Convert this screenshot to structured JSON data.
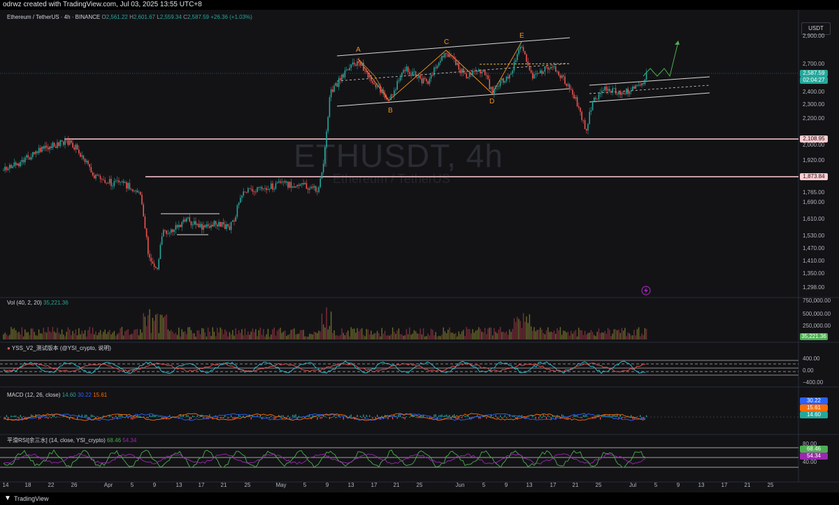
{
  "header": {
    "credit": "odrwz created with TradingView.com, Jul 03, 2025 13:55 UTC+8"
  },
  "symbol": {
    "title": "Ethereum / TetherUS · 4h · BINANCE",
    "o_label": "O",
    "o": "2,561.22",
    "h_label": "H",
    "h": "2,601.67",
    "l_label": "L",
    "l": "2,559.34",
    "c_label": "C",
    "c": "2,587.59",
    "change": "+26.36 (+1.03%)"
  },
  "watermark": {
    "ticker": "ETHUSDT, 4h",
    "name": "Ethereum / TetherUS"
  },
  "currency": "USDT",
  "price_axis": [
    "2,900.00",
    "2,700.00",
    "2,500.00",
    "2,400.00",
    "2,300.00",
    "2,200.00",
    "2,000.00",
    "1,920.00",
    "1,840.00",
    "1,765.00",
    "1,690.00",
    "1,610.00",
    "1,530.00",
    "1,470.00",
    "1,410.00",
    "1,350.00",
    "1,298.00"
  ],
  "price_badges": {
    "last": "2,587.59",
    "countdown": "02:04:27",
    "line_upper": "2,108.95",
    "line_lower": "1,873.84"
  },
  "wave_labels": [
    "A",
    "B",
    "C",
    "D",
    "E"
  ],
  "volume": {
    "legend_name": "Vol (40, 2, 20)",
    "legend_value": "35,221.36",
    "axis": [
      "750,000.00",
      "500,000.00",
      "250,000.00"
    ],
    "badge": "35,221.36"
  },
  "yss": {
    "legend": "YSS_V2_测试版本 (@YSI_crypto, 说明)",
    "axis": [
      "400.00",
      "0.00",
      "−400.00"
    ]
  },
  "macd": {
    "legend_name": "MACD (12, 26, close)",
    "v1": "14.60",
    "v2": "30.22",
    "v3": "15.61",
    "badges": [
      "30.22",
      "15.61",
      "14.60"
    ]
  },
  "rsi": {
    "legend_name": "平滑RSI[余三水] (14, close, YSI_crypto)",
    "v1": "68.46",
    "v2": "54.34",
    "axis": [
      "80.00",
      "40.00"
    ],
    "badges": [
      "68.46",
      "54.34"
    ]
  },
  "time_axis": [
    "14",
    "18",
    "22",
    "26",
    "Apr",
    "5",
    "9",
    "13",
    "17",
    "21",
    "25",
    "May",
    "5",
    "9",
    "13",
    "17",
    "21",
    "25",
    "Jun",
    "5",
    "9",
    "13",
    "17",
    "21",
    "25",
    "Jul",
    "5",
    "9",
    "13",
    "17",
    "21",
    "25"
  ],
  "footer": {
    "brand": "TradingView"
  },
  "colors": {
    "up": "#26a69a",
    "down": "#ef5350",
    "bg": "#131316"
  }
}
